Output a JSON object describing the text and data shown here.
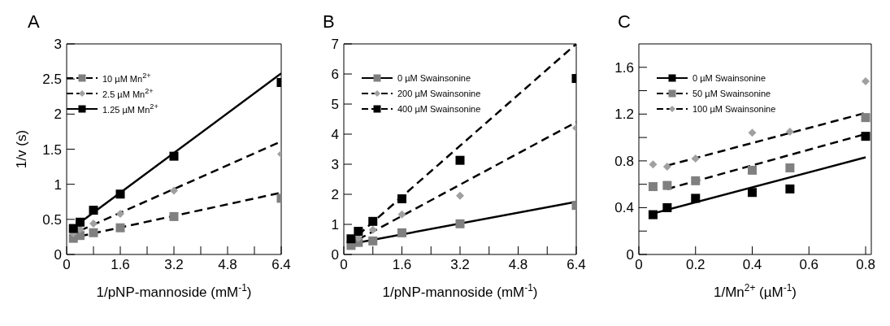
{
  "chart_data": [
    {
      "type": "scatter",
      "title": "A",
      "xlabel": "1/pNP-mannoside (mM$^{-1}$)",
      "ylabel": "1/v (s)",
      "xlim": [
        0,
        6.4
      ],
      "xticks": [
        0,
        {
          "value": 0.8,
          "label": null
        },
        1.6,
        {
          "value": 2.4,
          "label": null
        },
        3.2,
        {
          "value": 4,
          "label": null
        },
        4.8,
        {
          "value": 5.6,
          "label": null
        },
        6.4
      ],
      "ylim": [
        0,
        3
      ],
      "yticks": [
        0,
        0.5,
        1,
        1.5,
        2,
        2.5,
        3
      ],
      "grid": false,
      "legend": "top left",
      "x": [
        0.2,
        0.4,
        0.8,
        1.6,
        3.2,
        6.4
      ],
      "series": [
        {
          "name": "10 µM Mn$^{2+}$",
          "color": "#808080",
          "marker": "square",
          "values": [
            0.23,
            0.27,
            0.31,
            0.38,
            0.54,
            0.8
          ]
        },
        {
          "name": "2.5 µM Mn$^{2+}$",
          "color": "#a0a0a0",
          "marker": "diamond",
          "values": [
            0.3,
            0.36,
            0.44,
            0.58,
            0.91,
            1.43
          ]
        },
        {
          "name": "1.25 µM Mn$^{2+}$",
          "color": "#000000",
          "marker": "square",
          "values": [
            0.37,
            0.46,
            0.63,
            0.86,
            1.4,
            2.45
          ]
        },
        {
          "type": "line",
          "color": "#000000",
          "line_style": "dashed",
          "x": [
            0.4,
            6.4
          ],
          "values": [
            0.26,
            0.88
          ]
        },
        {
          "type": "line",
          "color": "#000000",
          "line_style": "dashed",
          "x": [
            0.4,
            6.4
          ],
          "values": [
            0.34,
            1.61
          ]
        },
        {
          "type": "line",
          "color": "#000000",
          "line_style": "solid",
          "x": [
            0.3,
            6.4
          ],
          "values": [
            0.42,
            2.58
          ]
        }
      ]
    },
    {
      "type": "scatter",
      "title": "B",
      "xlabel": "1/pNP-mannoside (mM$^{-1}$)",
      "xlim": [
        0,
        6.4
      ],
      "xticks": [
        0,
        {
          "value": 0.8,
          "label": null
        },
        1.6,
        {
          "value": 2.4,
          "label": null
        },
        3.2,
        {
          "value": 4,
          "label": null
        },
        4.8,
        {
          "value": 5.6,
          "label": null
        },
        6.4
      ],
      "ylim": [
        0,
        7
      ],
      "yticks": [
        0,
        1,
        2,
        3,
        4,
        5,
        6,
        7
      ],
      "grid": false,
      "legend": "top left",
      "x": [
        0.2,
        0.4,
        0.8,
        1.6,
        3.2,
        6.4
      ],
      "series": [
        {
          "name": "0 µM Swainsonine",
          "color": "#808080",
          "marker": "square",
          "values": [
            0.3,
            0.4,
            0.45,
            0.72,
            1.02,
            1.63
          ]
        },
        {
          "name": "200 µM Swainsonine",
          "color": "#a0a0a0",
          "marker": "diamond",
          "values": [
            null,
            0.55,
            0.82,
            1.33,
            1.95,
            4.2
          ]
        },
        {
          "name": "400 µM Swainsonine",
          "color": "#000000",
          "marker": "square",
          "values": [
            0.52,
            0.77,
            1.1,
            1.85,
            3.13,
            5.85
          ]
        },
        {
          "type": "line",
          "color": "#000000",
          "line_style": "solid",
          "x": [
            0.2,
            6.4
          ],
          "values": [
            0.35,
            1.75
          ]
        },
        {
          "type": "line",
          "color": "#000000",
          "line_style": "dashed",
          "x": [
            0.4,
            6.4
          ],
          "values": [
            0.5,
            4.4
          ]
        },
        {
          "type": "line",
          "color": "#000000",
          "line_style": "dashed",
          "x": [
            0.4,
            6.4
          ],
          "values": [
            0.65,
            7
          ]
        }
      ]
    },
    {
      "type": "scatter",
      "title": "C",
      "xlabel": "1/Mn$^{2+}$ (µM$^{-1}$)",
      "xlim": [
        0,
        0.82
      ],
      "xticks": [
        0,
        0.2,
        0.4,
        0.6,
        0.8
      ],
      "ylim": [
        0,
        1.8
      ],
      "yticks": [
        0,
        {
          "value": 0.2,
          "label": null
        },
        0.4,
        {
          "value": 0.6,
          "label": null
        },
        0.8,
        {
          "value": 1,
          "label": null
        },
        1.2,
        {
          "value": 1.4,
          "label": null
        },
        1.6
      ],
      "grid": false,
      "legend": "top left",
      "x": [
        0.05,
        0.1,
        0.2,
        0.4,
        0.533,
        0.8
      ],
      "series": [
        {
          "name": "0 µM Swainsonine",
          "color": "#000000",
          "marker": "square",
          "values": [
            0.34,
            0.4,
            0.48,
            0.53,
            0.56,
            1.01
          ]
        },
        {
          "name": "50 µM Swainsonine",
          "color": "#808080",
          "marker": "square",
          "values": [
            0.58,
            0.59,
            0.63,
            0.72,
            0.74,
            1.17
          ]
        },
        {
          "name": "100 µM Swainsonine",
          "color": "#a0a0a0",
          "marker": "diamond",
          "values": [
            0.77,
            0.75,
            0.82,
            1.04,
            1.05,
            1.48
          ]
        },
        {
          "type": "line",
          "color": "#000000",
          "line_style": "solid",
          "x": [
            0.05,
            0.8
          ],
          "values": [
            0.35,
            0.83
          ]
        },
        {
          "type": "line",
          "color": "#000000",
          "line_style": "dashed",
          "x": [
            0.1,
            0.8
          ],
          "values": [
            0.56,
            1.03
          ]
        },
        {
          "type": "line",
          "color": "#000000",
          "line_style": "dashed",
          "x": [
            0.1,
            0.8
          ],
          "values": [
            0.76,
            1.21
          ]
        }
      ]
    }
  ]
}
